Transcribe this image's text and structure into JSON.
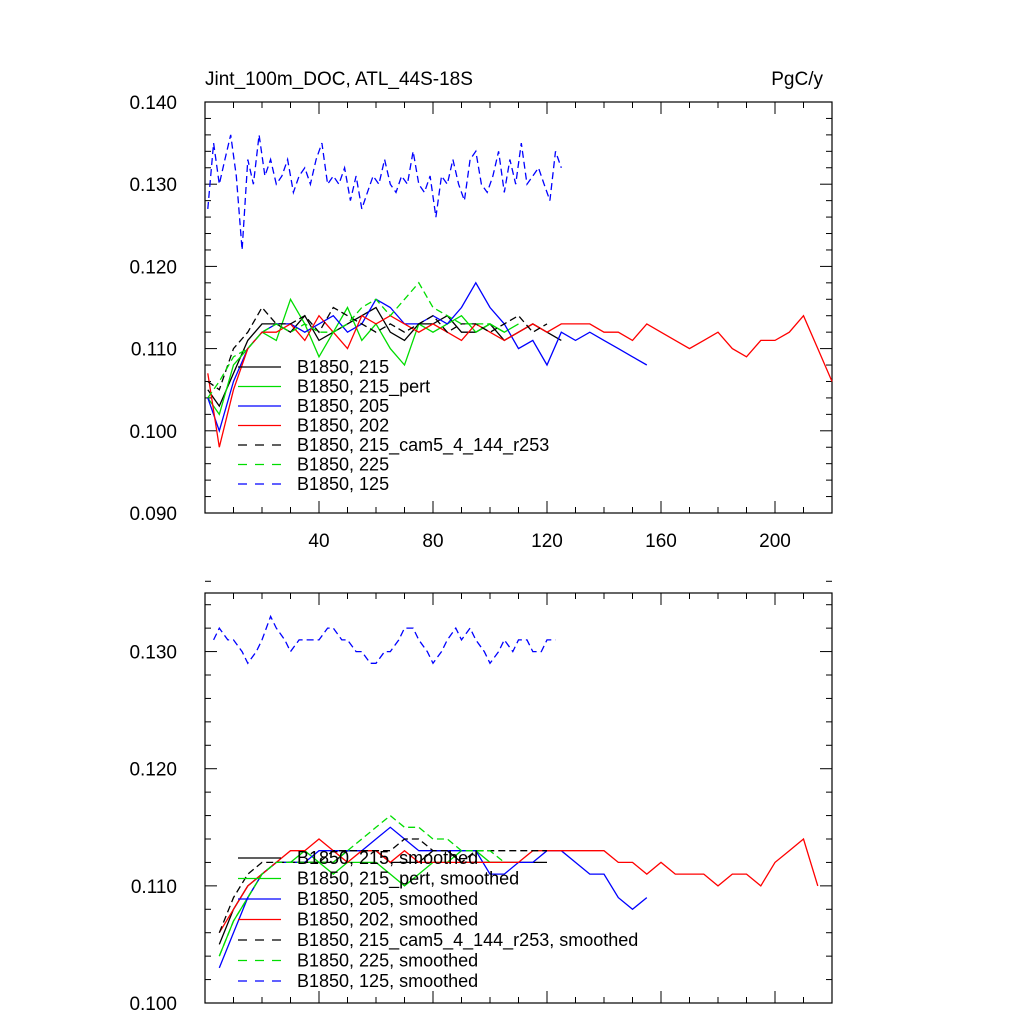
{
  "chart_data": [
    {
      "type": "line",
      "title": "Jint_100m_DOC, ATL_44S-18S",
      "units": "PgC/y",
      "xlim": [
        0,
        220
      ],
      "ylim": [
        0.09,
        0.14
      ],
      "x_ticks": [
        "40",
        "80",
        "120",
        "160",
        "200"
      ],
      "y_ticks": [
        "0.090",
        "0.100",
        "0.110",
        "0.120",
        "0.130",
        "0.140"
      ],
      "legend_position": "lower-left",
      "series": [
        {
          "name": "B1850, 215",
          "color": "#000000",
          "dash": "solid",
          "x": [
            1,
            5,
            10,
            15,
            20,
            25,
            30,
            35,
            40,
            45,
            50,
            55,
            60,
            65,
            70,
            75,
            80,
            85,
            90,
            95,
            100,
            105,
            110,
            115,
            120,
            125
          ],
          "y": [
            0.105,
            0.103,
            0.107,
            0.111,
            0.113,
            0.113,
            0.112,
            0.114,
            0.111,
            0.112,
            0.113,
            0.114,
            0.115,
            0.112,
            0.111,
            0.113,
            0.113,
            0.114,
            0.112,
            0.112,
            0.113,
            0.111,
            0.112,
            0.113,
            0.112,
            0.111
          ]
        },
        {
          "name": "B1850, 215_pert",
          "color": "#00dd00",
          "dash": "solid",
          "x": [
            1,
            5,
            10,
            15,
            20,
            25,
            30,
            35,
            40,
            45,
            50,
            55,
            60,
            65,
            70,
            75,
            80,
            85,
            90,
            95,
            100,
            105,
            110
          ],
          "y": [
            0.104,
            0.102,
            0.108,
            0.11,
            0.112,
            0.111,
            0.116,
            0.113,
            0.109,
            0.112,
            0.115,
            0.111,
            0.113,
            0.11,
            0.108,
            0.113,
            0.112,
            0.113,
            0.114,
            0.112,
            0.113,
            0.112,
            0.113
          ]
        },
        {
          "name": "B1850, 205",
          "color": "#0000ff",
          "dash": "solid",
          "x": [
            1,
            5,
            10,
            15,
            20,
            25,
            30,
            35,
            40,
            45,
            50,
            55,
            60,
            65,
            70,
            75,
            80,
            85,
            90,
            95,
            100,
            105,
            110,
            115,
            120,
            125,
            130,
            135,
            140,
            145,
            150,
            155
          ],
          "y": [
            0.104,
            0.1,
            0.106,
            0.11,
            0.112,
            0.113,
            0.113,
            0.112,
            0.113,
            0.114,
            0.112,
            0.113,
            0.116,
            0.115,
            0.113,
            0.113,
            0.114,
            0.113,
            0.115,
            0.118,
            0.115,
            0.113,
            0.11,
            0.111,
            0.108,
            0.112,
            0.111,
            0.112,
            0.111,
            0.11,
            0.109,
            0.108
          ]
        },
        {
          "name": "B1850, 202",
          "color": "#ff0000",
          "dash": "solid",
          "x": [
            1,
            5,
            10,
            15,
            20,
            25,
            30,
            35,
            40,
            45,
            50,
            55,
            60,
            65,
            70,
            75,
            80,
            85,
            90,
            95,
            100,
            105,
            110,
            115,
            120,
            125,
            130,
            135,
            140,
            145,
            150,
            155,
            160,
            165,
            170,
            175,
            180,
            185,
            190,
            195,
            200,
            205,
            210,
            215,
            220
          ],
          "y": [
            0.107,
            0.098,
            0.105,
            0.11,
            0.112,
            0.112,
            0.113,
            0.111,
            0.114,
            0.112,
            0.11,
            0.114,
            0.113,
            0.114,
            0.113,
            0.112,
            0.113,
            0.112,
            0.111,
            0.113,
            0.112,
            0.111,
            0.112,
            0.113,
            0.112,
            0.113,
            0.113,
            0.113,
            0.112,
            0.112,
            0.111,
            0.113,
            0.112,
            0.111,
            0.11,
            0.111,
            0.112,
            0.11,
            0.109,
            0.111,
            0.111,
            0.112,
            0.114,
            0.11,
            0.106
          ]
        },
        {
          "name": "B1850, 215_cam5_4_144_r253",
          "color": "#000000",
          "dash": "dashed",
          "x": [
            1,
            5,
            10,
            15,
            20,
            25,
            30,
            35,
            40,
            45,
            50,
            55,
            60,
            65,
            70,
            75,
            80,
            85,
            90,
            95,
            100,
            105,
            110,
            115,
            120
          ],
          "y": [
            0.106,
            0.105,
            0.11,
            0.112,
            0.115,
            0.113,
            0.113,
            0.114,
            0.112,
            0.115,
            0.114,
            0.113,
            0.112,
            0.113,
            0.112,
            0.113,
            0.114,
            0.112,
            0.113,
            0.113,
            0.112,
            0.113,
            0.114,
            0.112,
            0.113
          ]
        },
        {
          "name": "B1850, 225",
          "color": "#00dd00",
          "dash": "dashed",
          "x": [
            1,
            5,
            10,
            15,
            20,
            25,
            30,
            35,
            40,
            45,
            50,
            55,
            60,
            65,
            70,
            75,
            80,
            85,
            90,
            95,
            100,
            105
          ],
          "y": [
            0.104,
            0.106,
            0.109,
            0.11,
            0.112,
            0.113,
            0.112,
            0.113,
            0.112,
            0.112,
            0.113,
            0.115,
            0.116,
            0.114,
            0.116,
            0.118,
            0.115,
            0.114,
            0.113,
            0.113,
            0.113,
            0.112
          ]
        },
        {
          "name": "B1850, 125",
          "color": "#0000ff",
          "dash": "dashed",
          "x": [
            1,
            3,
            5,
            7,
            9,
            11,
            13,
            15,
            17,
            19,
            21,
            23,
            25,
            27,
            29,
            31,
            33,
            35,
            37,
            39,
            41,
            43,
            45,
            47,
            49,
            51,
            53,
            55,
            57,
            59,
            61,
            63,
            65,
            67,
            69,
            71,
            73,
            75,
            77,
            79,
            81,
            83,
            85,
            87,
            89,
            91,
            93,
            95,
            97,
            99,
            101,
            103,
            105,
            107,
            109,
            111,
            113,
            115,
            117,
            119,
            121,
            123,
            125
          ],
          "y": [
            0.127,
            0.135,
            0.13,
            0.133,
            0.136,
            0.131,
            0.122,
            0.133,
            0.13,
            0.136,
            0.131,
            0.133,
            0.13,
            0.131,
            0.133,
            0.129,
            0.131,
            0.132,
            0.13,
            0.133,
            0.135,
            0.13,
            0.131,
            0.13,
            0.132,
            0.128,
            0.131,
            0.127,
            0.129,
            0.131,
            0.13,
            0.133,
            0.13,
            0.129,
            0.131,
            0.13,
            0.134,
            0.13,
            0.129,
            0.131,
            0.126,
            0.131,
            0.13,
            0.133,
            0.13,
            0.128,
            0.133,
            0.134,
            0.13,
            0.129,
            0.131,
            0.134,
            0.129,
            0.133,
            0.13,
            0.135,
            0.13,
            0.131,
            0.132,
            0.13,
            0.128,
            0.134,
            0.132
          ]
        }
      ]
    },
    {
      "type": "line",
      "xlim": [
        0,
        220
      ],
      "ylim": [
        0.1,
        0.135
      ],
      "y_ticks": [
        "0.100",
        "0.110",
        "0.120",
        "0.130"
      ],
      "legend_position": "lower-left",
      "series": [
        {
          "name": "B1850, 215, smoothed",
          "color": "#000000",
          "dash": "solid",
          "x": [
            5,
            10,
            15,
            20,
            25,
            30,
            35,
            40,
            45,
            50,
            55,
            60,
            65,
            70,
            75,
            80,
            85,
            90,
            95,
            100,
            105,
            110,
            115,
            120
          ],
          "y": [
            0.105,
            0.108,
            0.11,
            0.111,
            0.112,
            0.112,
            0.112,
            0.112,
            0.112,
            0.113,
            0.113,
            0.113,
            0.112,
            0.112,
            0.112,
            0.113,
            0.113,
            0.112,
            0.112,
            0.112,
            0.112,
            0.112,
            0.112,
            0.112
          ]
        },
        {
          "name": "B1850, 215_pert, smoothed",
          "color": "#00dd00",
          "dash": "solid",
          "x": [
            5,
            10,
            15,
            20,
            25,
            30,
            35,
            40,
            45,
            50,
            55,
            60,
            65,
            70,
            75,
            80,
            85,
            90,
            95,
            100,
            105
          ],
          "y": [
            0.104,
            0.107,
            0.109,
            0.111,
            0.112,
            0.112,
            0.113,
            0.112,
            0.111,
            0.112,
            0.112,
            0.112,
            0.111,
            0.11,
            0.111,
            0.112,
            0.112,
            0.113,
            0.113,
            0.112,
            0.112
          ]
        },
        {
          "name": "B1850, 205, smoothed",
          "color": "#0000ff",
          "dash": "solid",
          "x": [
            5,
            10,
            15,
            20,
            25,
            30,
            35,
            40,
            45,
            50,
            55,
            60,
            65,
            70,
            75,
            80,
            85,
            90,
            95,
            100,
            105,
            110,
            115,
            120,
            125,
            130,
            135,
            140,
            145,
            150,
            155
          ],
          "y": [
            0.103,
            0.106,
            0.109,
            0.111,
            0.112,
            0.112,
            0.112,
            0.113,
            0.113,
            0.113,
            0.113,
            0.114,
            0.115,
            0.114,
            0.113,
            0.113,
            0.113,
            0.113,
            0.113,
            0.111,
            0.111,
            0.112,
            0.112,
            0.113,
            0.113,
            0.112,
            0.111,
            0.111,
            0.109,
            0.108,
            0.109
          ]
        },
        {
          "name": "B1850, 202, smoothed",
          "color": "#ff0000",
          "dash": "solid",
          "x": [
            5,
            10,
            15,
            20,
            25,
            30,
            35,
            40,
            45,
            50,
            55,
            60,
            65,
            70,
            75,
            80,
            85,
            90,
            95,
            100,
            105,
            110,
            115,
            120,
            125,
            130,
            135,
            140,
            145,
            150,
            155,
            160,
            165,
            170,
            175,
            180,
            185,
            190,
            195,
            200,
            205,
            210,
            215
          ],
          "y": [
            0.106,
            0.108,
            0.11,
            0.111,
            0.112,
            0.113,
            0.113,
            0.114,
            0.113,
            0.112,
            0.113,
            0.113,
            0.112,
            0.113,
            0.112,
            0.112,
            0.112,
            0.112,
            0.112,
            0.112,
            0.112,
            0.112,
            0.113,
            0.113,
            0.113,
            0.113,
            0.113,
            0.113,
            0.112,
            0.112,
            0.111,
            0.112,
            0.111,
            0.111,
            0.111,
            0.11,
            0.111,
            0.111,
            0.11,
            0.112,
            0.113,
            0.114,
            0.11
          ]
        },
        {
          "name": "B1850, 215_cam5_4_144_r253, smoothed",
          "color": "#000000",
          "dash": "dashed",
          "x": [
            5,
            10,
            15,
            20,
            25,
            30,
            35,
            40,
            45,
            50,
            55,
            60,
            65,
            70,
            75,
            80,
            85,
            90,
            95,
            100,
            105,
            110,
            115,
            120
          ],
          "y": [
            0.106,
            0.109,
            0.111,
            0.112,
            0.112,
            0.112,
            0.112,
            0.112,
            0.113,
            0.113,
            0.113,
            0.113,
            0.113,
            0.114,
            0.114,
            0.113,
            0.113,
            0.112,
            0.113,
            0.113,
            0.113,
            0.113,
            0.113,
            0.113
          ]
        },
        {
          "name": "B1850, 225, smoothed",
          "color": "#00dd00",
          "dash": "dashed",
          "x": [
            5,
            10,
            15,
            20,
            25,
            30,
            35,
            40,
            45,
            50,
            55,
            60,
            65,
            70,
            75,
            80,
            85,
            90,
            95,
            100,
            105
          ],
          "y": [
            0.104,
            0.107,
            0.109,
            0.111,
            0.112,
            0.112,
            0.112,
            0.112,
            0.112,
            0.113,
            0.114,
            0.115,
            0.116,
            0.115,
            0.115,
            0.114,
            0.114,
            0.113,
            0.113,
            0.113,
            0.112
          ]
        },
        {
          "name": "B1850, 125, smoothed",
          "color": "#0000ff",
          "dash": "dashed",
          "x": [
            3,
            5,
            8,
            10,
            13,
            15,
            18,
            20,
            23,
            25,
            28,
            30,
            33,
            35,
            38,
            40,
            43,
            45,
            48,
            50,
            53,
            55,
            58,
            60,
            63,
            65,
            68,
            70,
            73,
            75,
            78,
            80,
            83,
            85,
            88,
            90,
            93,
            95,
            98,
            100,
            103,
            105,
            108,
            110,
            113,
            115,
            118,
            120,
            123
          ],
          "y": [
            0.131,
            0.132,
            0.131,
            0.131,
            0.13,
            0.129,
            0.13,
            0.131,
            0.133,
            0.132,
            0.131,
            0.13,
            0.131,
            0.131,
            0.131,
            0.131,
            0.132,
            0.132,
            0.131,
            0.131,
            0.13,
            0.13,
            0.129,
            0.129,
            0.13,
            0.13,
            0.131,
            0.132,
            0.132,
            0.131,
            0.13,
            0.129,
            0.13,
            0.131,
            0.132,
            0.131,
            0.132,
            0.131,
            0.13,
            0.129,
            0.13,
            0.131,
            0.13,
            0.131,
            0.131,
            0.13,
            0.13,
            0.131,
            0.131
          ]
        }
      ]
    }
  ]
}
